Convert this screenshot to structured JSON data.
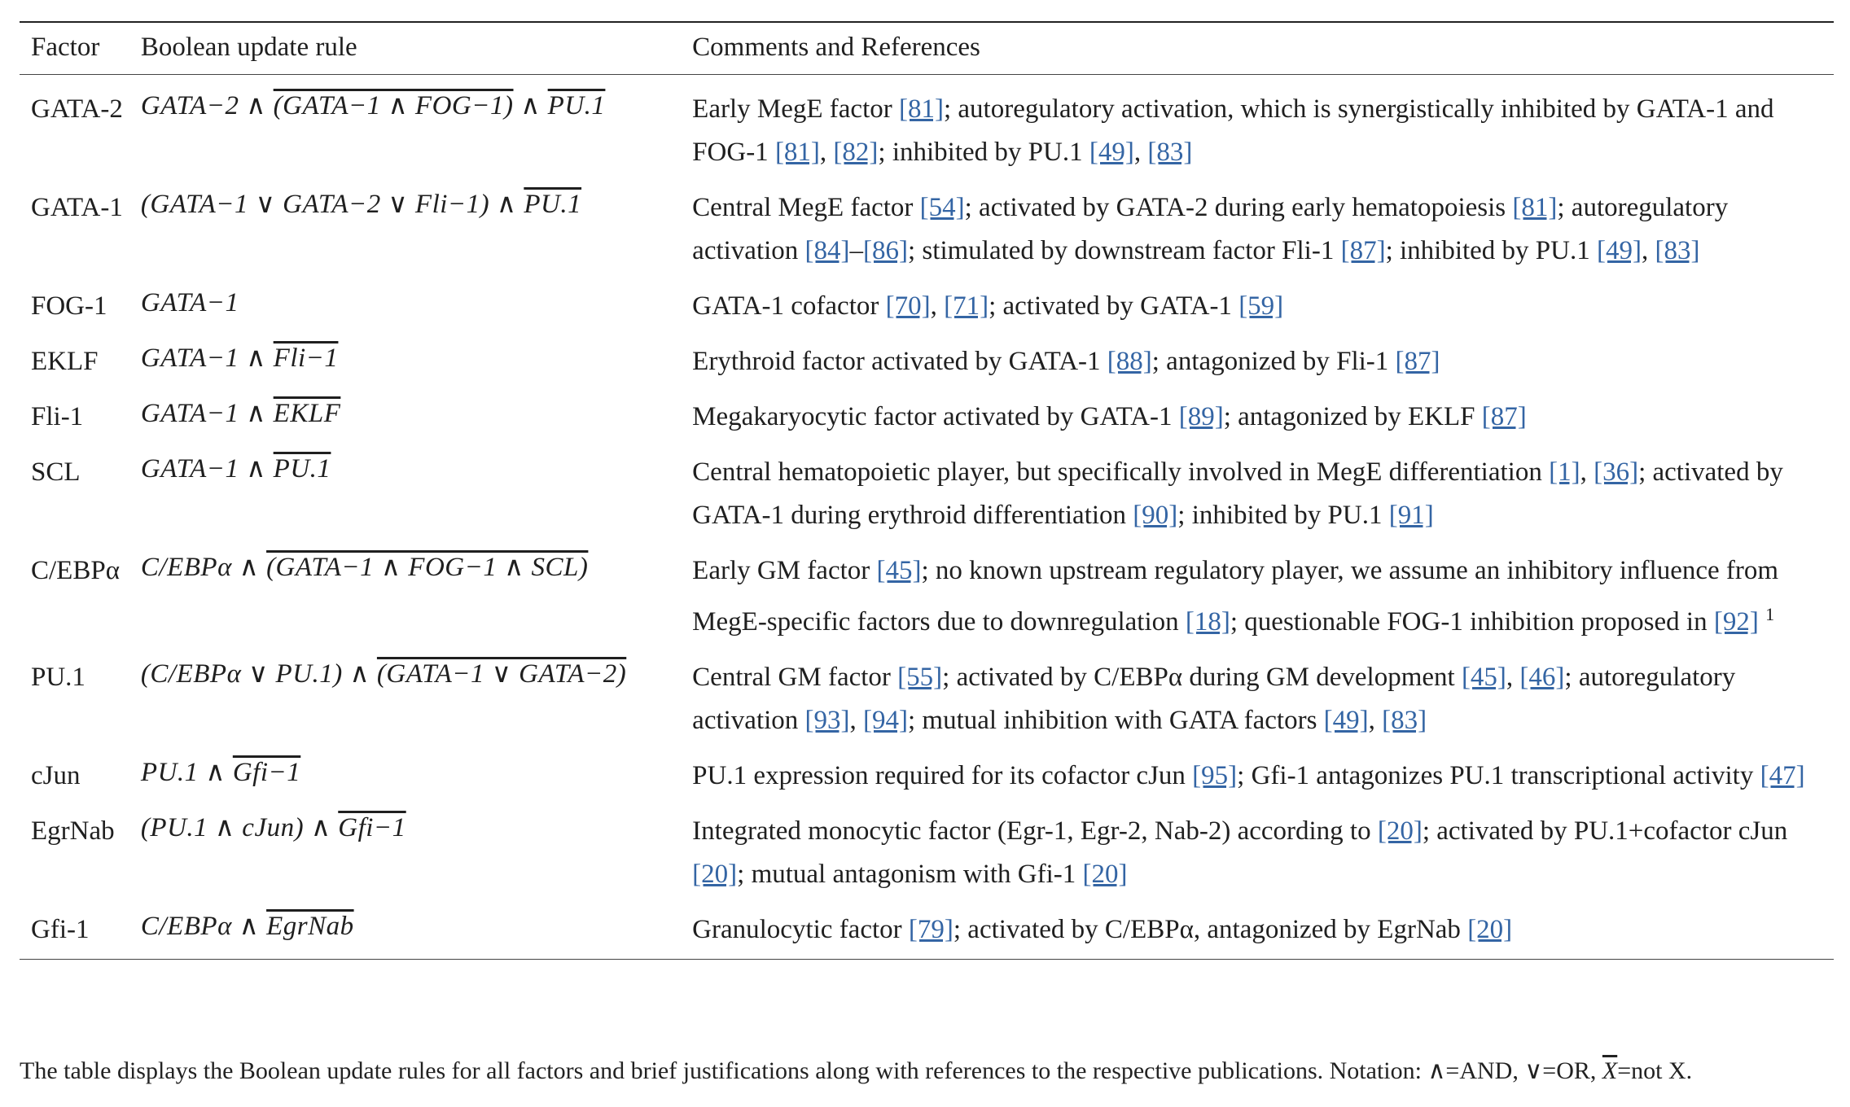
{
  "header": {
    "col1": "Factor",
    "col2": "Boolean update rule",
    "col3": "Comments and References"
  },
  "rows": [
    {
      "factor": "GATA-2",
      "rule": [
        {
          "t": "GATA−2 ∧ ",
          "o": false
        },
        {
          "t": "(GATA−1 ∧ FOG−1)",
          "o": true
        },
        {
          "t": " ∧ ",
          "o": false
        },
        {
          "t": "PU.1",
          "o": true
        }
      ],
      "comment": [
        {
          "t": "Early MegE factor "
        },
        {
          "r": "[81]"
        },
        {
          "t": "; autoregulatory activation, which is synergistically inhibited by GATA-1 and FOG-1 "
        },
        {
          "r": "[81]"
        },
        {
          "t": ", "
        },
        {
          "r": "[82]"
        },
        {
          "t": "; inhibited by PU.1 "
        },
        {
          "r": "[49]"
        },
        {
          "t": ", "
        },
        {
          "r": "[83]"
        }
      ]
    },
    {
      "factor": "GATA-1",
      "rule": [
        {
          "t": "(GATA−1 ∨ GATA−2 ∨ Fli−1) ∧ ",
          "o": false
        },
        {
          "t": "PU.1",
          "o": true
        }
      ],
      "comment": [
        {
          "t": "Central MegE factor "
        },
        {
          "r": "[54]"
        },
        {
          "t": "; activated by GATA-2 during early hematopoiesis "
        },
        {
          "r": "[81]"
        },
        {
          "t": "; autoregulatory activation "
        },
        {
          "r": "[84]"
        },
        {
          "t": "–"
        },
        {
          "r": "[86]"
        },
        {
          "t": "; stimulated by downstream factor Fli-1 "
        },
        {
          "r": "[87]"
        },
        {
          "t": "; inhibited by PU.1 "
        },
        {
          "r": "[49]"
        },
        {
          "t": ", "
        },
        {
          "r": "[83]"
        }
      ]
    },
    {
      "factor": "FOG-1",
      "rule": [
        {
          "t": "GATA−1",
          "o": false
        }
      ],
      "comment": [
        {
          "t": "GATA-1 cofactor "
        },
        {
          "r": "[70]"
        },
        {
          "t": ", "
        },
        {
          "r": "[71]"
        },
        {
          "t": "; activated by GATA-1 "
        },
        {
          "r": "[59]"
        }
      ]
    },
    {
      "factor": "EKLF",
      "rule": [
        {
          "t": "GATA−1 ∧ ",
          "o": false
        },
        {
          "t": "Fli−1",
          "o": true
        }
      ],
      "comment": [
        {
          "t": "Erythroid factor activated by GATA-1 "
        },
        {
          "r": "[88]"
        },
        {
          "t": "; antagonized by Fli-1 "
        },
        {
          "r": "[87]"
        }
      ]
    },
    {
      "factor": "Fli-1",
      "rule": [
        {
          "t": "GATA−1 ∧ ",
          "o": false
        },
        {
          "t": "EKLF",
          "o": true
        }
      ],
      "comment": [
        {
          "t": "Megakaryocytic factor activated by GATA-1 "
        },
        {
          "r": "[89]"
        },
        {
          "t": "; antagonized by EKLF "
        },
        {
          "r": "[87]"
        }
      ]
    },
    {
      "factor": "SCL",
      "rule": [
        {
          "t": "GATA−1 ∧ ",
          "o": false
        },
        {
          "t": "PU.1",
          "o": true
        }
      ],
      "comment": [
        {
          "t": "Central hematopoietic player, but specifically involved in MegE differentiation "
        },
        {
          "r": "[1]"
        },
        {
          "t": ", "
        },
        {
          "r": "[36]"
        },
        {
          "t": "; activated by GATA-1 during erythroid differentiation "
        },
        {
          "r": "[90]"
        },
        {
          "t": "; inhibited by PU.1 "
        },
        {
          "r": "[91]"
        }
      ]
    },
    {
      "factor": "C/EBPα",
      "rule": [
        {
          "t": "C/EBPα ∧ ",
          "o": false
        },
        {
          "t": "(GATA−1 ∧ FOG−1 ∧ SCL)",
          "o": true
        }
      ],
      "comment": [
        {
          "t": "Early GM factor "
        },
        {
          "r": "[45]"
        },
        {
          "t": "; no known upstream regulatory player, we assume an inhibitory influence from MegE-specific factors due to downregulation "
        },
        {
          "r": "[18]"
        },
        {
          "t": "; questionable FOG-1 inhibition proposed in "
        },
        {
          "r": "[92]"
        },
        {
          "t": " "
        },
        {
          "s": "1"
        }
      ]
    },
    {
      "factor": "PU.1",
      "rule": [
        {
          "t": "(C/EBPα ∨ PU.1) ∧ ",
          "o": false
        },
        {
          "t": "(GATA−1 ∨ GATA−2)",
          "o": true
        }
      ],
      "comment": [
        {
          "t": "Central GM factor "
        },
        {
          "r": "[55]"
        },
        {
          "t": "; activated by C/EBPα during GM development "
        },
        {
          "r": "[45]"
        },
        {
          "t": ", "
        },
        {
          "r": "[46]"
        },
        {
          "t": "; autoregulatory activation "
        },
        {
          "r": "[93]"
        },
        {
          "t": ", "
        },
        {
          "r": "[94]"
        },
        {
          "t": "; mutual inhibition with GATA factors "
        },
        {
          "r": "[49]"
        },
        {
          "t": ", "
        },
        {
          "r": "[83]"
        }
      ]
    },
    {
      "factor": "cJun",
      "rule": [
        {
          "t": "PU.1 ∧ ",
          "o": false
        },
        {
          "t": "Gfi−1",
          "o": true
        }
      ],
      "comment": [
        {
          "t": "PU.1 expression required for its cofactor cJun "
        },
        {
          "r": "[95]"
        },
        {
          "t": "; Gfi-1 antagonizes PU.1 transcriptional activity "
        },
        {
          "r": "[47]"
        }
      ]
    },
    {
      "factor": "EgrNab",
      "rule": [
        {
          "t": "(PU.1 ∧ cJun) ∧ ",
          "o": false
        },
        {
          "t": "Gfi−1",
          "o": true
        }
      ],
      "comment": [
        {
          "t": "Integrated monocytic factor (Egr-1, Egr-2, Nab-2) according to "
        },
        {
          "r": "[20]"
        },
        {
          "t": "; activated by PU.1+cofactor cJun "
        },
        {
          "r": "[20]"
        },
        {
          "t": "; mutual antagonism with Gfi-1 "
        },
        {
          "r": "[20]"
        }
      ]
    },
    {
      "factor": "Gfi-1",
      "rule": [
        {
          "t": "C/EBPα ∧ ",
          "o": false
        },
        {
          "t": "EgrNab",
          "o": true
        }
      ],
      "comment": [
        {
          "t": "Granulocytic factor "
        },
        {
          "r": "[79]"
        },
        {
          "t": "; activated by C/EBPα, antagonized by EgrNab "
        },
        {
          "r": "[20]"
        }
      ]
    }
  ],
  "caption": {
    "text_before": "The table displays the Boolean update rules for all factors and brief justifications along with references to the respective publications. Notation: ∧=AND, ∨=OR, ",
    "x_symbol": "X",
    "text_after": "=not X."
  }
}
